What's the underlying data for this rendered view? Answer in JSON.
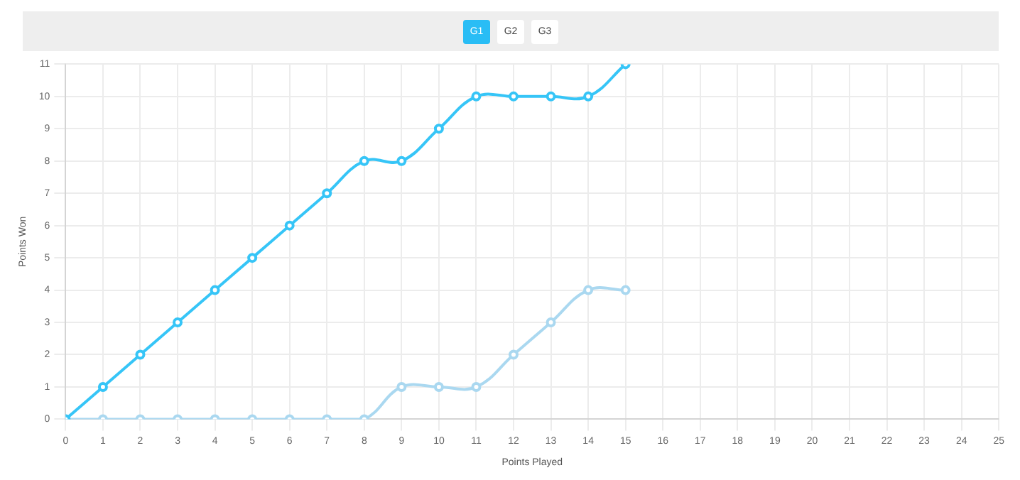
{
  "chart_data": {
    "type": "line",
    "annotations": [
      "G1",
      "G2",
      "G3"
    ],
    "xlabel": "Points Played",
    "ylabel": "Points Won",
    "x": [
      0,
      1,
      2,
      3,
      4,
      5,
      6,
      7,
      8,
      9,
      10,
      11,
      12,
      13,
      14,
      15
    ],
    "series": [
      {
        "color": "#36c5f7",
        "values": [
          0,
          1,
          2,
          3,
          4,
          5,
          6,
          7,
          8,
          8,
          9,
          10,
          10,
          10,
          10,
          11
        ]
      },
      {
        "color": "#aad8f0",
        "values": [
          0,
          0,
          0,
          0,
          0,
          0,
          0,
          0,
          0,
          1,
          1,
          1,
          2,
          3,
          4,
          4
        ]
      }
    ],
    "xlim": [
      0,
      25
    ],
    "xticks": [
      0,
      1,
      2,
      3,
      4,
      5,
      6,
      7,
      8,
      9,
      10,
      11,
      12,
      13,
      14,
      15,
      16,
      17,
      18,
      19,
      20,
      21,
      22,
      23,
      24,
      25
    ],
    "ylim": [
      0,
      11
    ],
    "yticks": [
      0,
      1,
      2,
      3,
      4,
      5,
      6,
      7,
      8,
      9,
      10,
      11
    ],
    "grid": true,
    "legend": false,
    "marker": "circle",
    "line_style": "solid"
  }
}
